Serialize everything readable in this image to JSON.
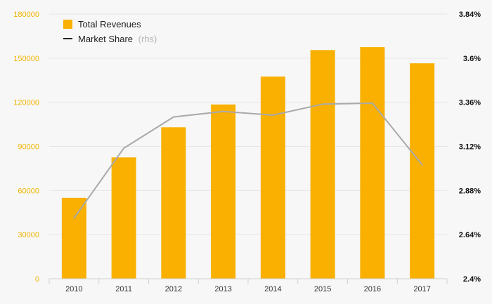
{
  "chart_data": {
    "type": "bar",
    "categories": [
      "2010",
      "2011",
      "2012",
      "2013",
      "2014",
      "2015",
      "2016",
      "2017"
    ],
    "series": [
      {
        "name": "Total Revenues",
        "type": "bar",
        "axis": "left",
        "color": "#f9b000",
        "values": [
          55000,
          82500,
          103000,
          118500,
          137500,
          155500,
          157500,
          146500
        ]
      },
      {
        "name": "Market Share",
        "name_suffix": "(rhs)",
        "type": "line",
        "axis": "right",
        "color": "#a9a9a9",
        "values": [
          2.73,
          3.11,
          3.28,
          3.31,
          3.29,
          3.35,
          3.355,
          3.02
        ]
      }
    ],
    "y_left": {
      "range": [
        0,
        180000
      ],
      "ticks": [
        "0",
        "30000",
        "60000",
        "90000",
        "120000",
        "150000",
        "180000"
      ],
      "color": "#f0b400"
    },
    "y_right": {
      "range": [
        2.4,
        3.84
      ],
      "ticks": [
        "2.4%",
        "2.64%",
        "2.88%",
        "3.12%",
        "3.36%",
        "3.6%",
        "3.84%"
      ]
    },
    "grid": true,
    "legend_position": "top-left"
  }
}
